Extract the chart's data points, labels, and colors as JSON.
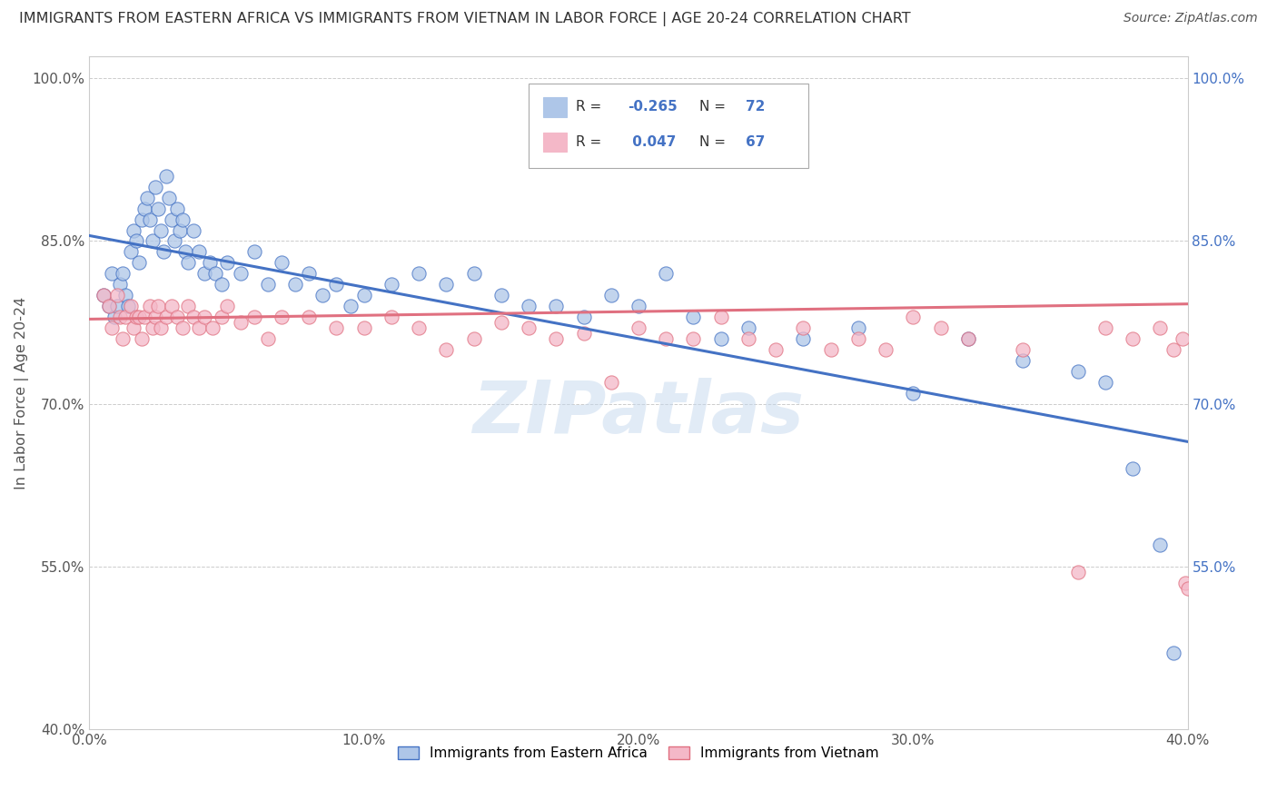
{
  "title": "IMMIGRANTS FROM EASTERN AFRICA VS IMMIGRANTS FROM VIETNAM IN LABOR FORCE | AGE 20-24 CORRELATION CHART",
  "source": "Source: ZipAtlas.com",
  "ylabel": "In Labor Force | Age 20-24",
  "series1_label": "Immigrants from Eastern Africa",
  "series2_label": "Immigrants from Vietnam",
  "series1_R": "-0.265",
  "series1_N": "72",
  "series2_R": "0.047",
  "series2_N": "67",
  "series1_color": "#aec6e8",
  "series2_color": "#f4b8c8",
  "series1_line_color": "#4472c4",
  "series2_line_color": "#e07080",
  "watermark": "ZIPatlas",
  "xlim": [
    0.0,
    0.4
  ],
  "ylim": [
    0.4,
    1.02
  ],
  "yticks": [
    0.4,
    0.55,
    0.7,
    0.85,
    1.0
  ],
  "ytick_labels": [
    "40.0%",
    "55.0%",
    "70.0%",
    "85.0%",
    "100.0%"
  ],
  "xticks": [
    0.0,
    0.1,
    0.2,
    0.3,
    0.4
  ],
  "xtick_labels": [
    "0.0%",
    "10.0%",
    "20.0%",
    "30.0%",
    "40.0%"
  ],
  "right_yticks": [
    0.55,
    0.7,
    0.85,
    1.0
  ],
  "right_ytick_labels": [
    "55.0%",
    "70.0%",
    "85.0%",
    "100.0%"
  ],
  "series1_x": [
    0.005,
    0.007,
    0.008,
    0.009,
    0.01,
    0.011,
    0.012,
    0.013,
    0.014,
    0.015,
    0.016,
    0.017,
    0.018,
    0.019,
    0.02,
    0.021,
    0.022,
    0.023,
    0.024,
    0.025,
    0.026,
    0.027,
    0.028,
    0.029,
    0.03,
    0.031,
    0.032,
    0.033,
    0.034,
    0.035,
    0.036,
    0.038,
    0.04,
    0.042,
    0.044,
    0.046,
    0.048,
    0.05,
    0.055,
    0.06,
    0.065,
    0.07,
    0.075,
    0.08,
    0.085,
    0.09,
    0.095,
    0.1,
    0.11,
    0.12,
    0.13,
    0.14,
    0.15,
    0.16,
    0.17,
    0.18,
    0.19,
    0.2,
    0.21,
    0.22,
    0.23,
    0.24,
    0.26,
    0.28,
    0.3,
    0.32,
    0.34,
    0.36,
    0.37,
    0.38,
    0.39,
    0.395
  ],
  "series1_y": [
    0.8,
    0.79,
    0.82,
    0.78,
    0.79,
    0.81,
    0.82,
    0.8,
    0.79,
    0.84,
    0.86,
    0.85,
    0.83,
    0.87,
    0.88,
    0.89,
    0.87,
    0.85,
    0.9,
    0.88,
    0.86,
    0.84,
    0.91,
    0.89,
    0.87,
    0.85,
    0.88,
    0.86,
    0.87,
    0.84,
    0.83,
    0.86,
    0.84,
    0.82,
    0.83,
    0.82,
    0.81,
    0.83,
    0.82,
    0.84,
    0.81,
    0.83,
    0.81,
    0.82,
    0.8,
    0.81,
    0.79,
    0.8,
    0.81,
    0.82,
    0.81,
    0.82,
    0.8,
    0.79,
    0.79,
    0.78,
    0.8,
    0.79,
    0.82,
    0.78,
    0.76,
    0.77,
    0.76,
    0.77,
    0.71,
    0.76,
    0.74,
    0.73,
    0.72,
    0.64,
    0.57,
    0.47
  ],
  "series2_x": [
    0.005,
    0.007,
    0.008,
    0.01,
    0.011,
    0.012,
    0.013,
    0.015,
    0.016,
    0.017,
    0.018,
    0.019,
    0.02,
    0.022,
    0.023,
    0.024,
    0.025,
    0.026,
    0.028,
    0.03,
    0.032,
    0.034,
    0.036,
    0.038,
    0.04,
    0.042,
    0.045,
    0.048,
    0.05,
    0.055,
    0.06,
    0.065,
    0.07,
    0.08,
    0.09,
    0.1,
    0.11,
    0.12,
    0.13,
    0.14,
    0.15,
    0.16,
    0.17,
    0.18,
    0.19,
    0.2,
    0.21,
    0.22,
    0.23,
    0.24,
    0.25,
    0.26,
    0.27,
    0.28,
    0.29,
    0.3,
    0.31,
    0.32,
    0.34,
    0.36,
    0.37,
    0.38,
    0.39,
    0.395,
    0.398,
    0.399,
    0.4
  ],
  "series2_y": [
    0.8,
    0.79,
    0.77,
    0.8,
    0.78,
    0.76,
    0.78,
    0.79,
    0.77,
    0.78,
    0.78,
    0.76,
    0.78,
    0.79,
    0.77,
    0.78,
    0.79,
    0.77,
    0.78,
    0.79,
    0.78,
    0.77,
    0.79,
    0.78,
    0.77,
    0.78,
    0.77,
    0.78,
    0.79,
    0.775,
    0.78,
    0.76,
    0.78,
    0.78,
    0.77,
    0.77,
    0.78,
    0.77,
    0.75,
    0.76,
    0.775,
    0.77,
    0.76,
    0.765,
    0.72,
    0.77,
    0.76,
    0.76,
    0.78,
    0.76,
    0.75,
    0.77,
    0.75,
    0.76,
    0.75,
    0.78,
    0.77,
    0.76,
    0.75,
    0.545,
    0.77,
    0.76,
    0.77,
    0.75,
    0.76,
    0.535,
    0.53
  ]
}
